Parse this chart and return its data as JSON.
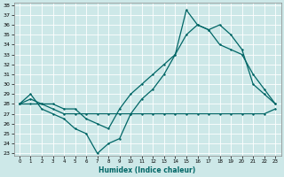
{
  "xlabel": "Humidex (Indice chaleur)",
  "bg_color": "#cde8e8",
  "grid_color": "#b0d8d8",
  "line_color": "#006666",
  "xlim": [
    -0.5,
    23.5
  ],
  "ylim": [
    22.8,
    38.2
  ],
  "xticks": [
    0,
    1,
    2,
    3,
    4,
    5,
    6,
    7,
    8,
    9,
    10,
    11,
    12,
    13,
    14,
    15,
    16,
    17,
    18,
    19,
    20,
    21,
    22,
    23
  ],
  "yticks": [
    23,
    24,
    25,
    26,
    27,
    28,
    29,
    30,
    31,
    32,
    33,
    34,
    35,
    36,
    37,
    38
  ],
  "line1_x": [
    0,
    1,
    2,
    3,
    4,
    5,
    6,
    7,
    8,
    9,
    10,
    11,
    12,
    13,
    14,
    15,
    16,
    17,
    18,
    19,
    20,
    21,
    22,
    23
  ],
  "line1_y": [
    28,
    28,
    28,
    27.5,
    27,
    27,
    27,
    27,
    27,
    27,
    27,
    27,
    27,
    27,
    27,
    27,
    27,
    27,
    27,
    27,
    27,
    27,
    27,
    27.5
  ],
  "line2_x": [
    0,
    1,
    2,
    3,
    4,
    5,
    6,
    7,
    8,
    9,
    10,
    11,
    12,
    13,
    14,
    15,
    16,
    17,
    18,
    19,
    20,
    21,
    22,
    23
  ],
  "line2_y": [
    28,
    28.5,
    28,
    28,
    27.5,
    27.5,
    26.5,
    26,
    25.5,
    27.5,
    29,
    30,
    31,
    32,
    33,
    35,
    36,
    35.5,
    34,
    33.5,
    33,
    31,
    29.5,
    28
  ],
  "line3_x": [
    0,
    1,
    2,
    3,
    4,
    5,
    6,
    7,
    8,
    9,
    10,
    11,
    12,
    13,
    14,
    15,
    16,
    17,
    18,
    19,
    20,
    21,
    22,
    23
  ],
  "line3_y": [
    28,
    29,
    27.5,
    27,
    26.5,
    25.5,
    25,
    23,
    24,
    24.5,
    27,
    28.5,
    29.5,
    31,
    33,
    37.5,
    36,
    35.5,
    36,
    35,
    33.5,
    30,
    29,
    28
  ]
}
